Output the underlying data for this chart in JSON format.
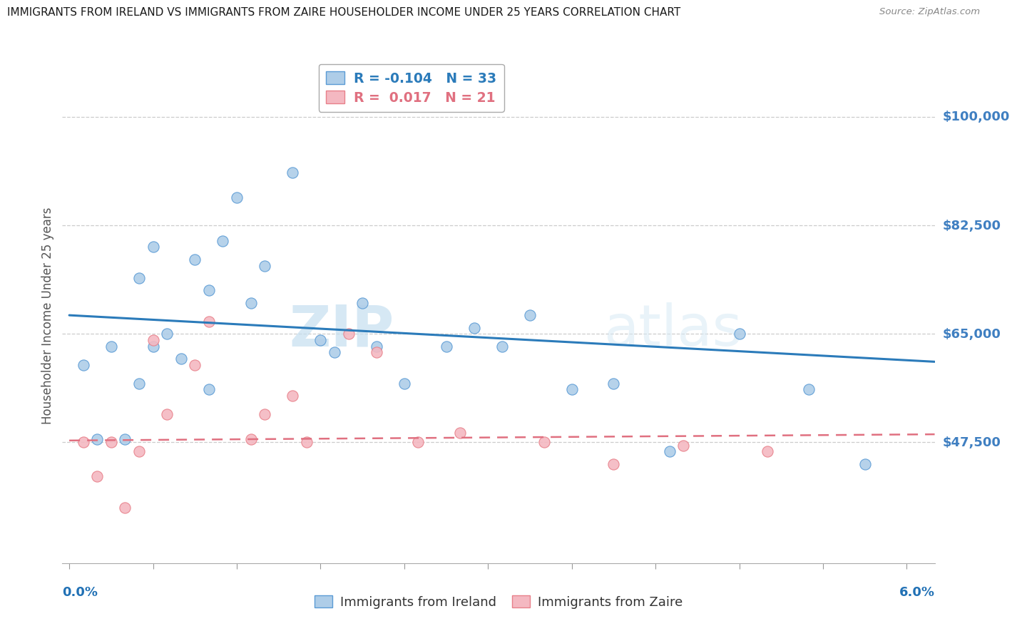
{
  "title": "IMMIGRANTS FROM IRELAND VS IMMIGRANTS FROM ZAIRE HOUSEHOLDER INCOME UNDER 25 YEARS CORRELATION CHART",
  "source": "Source: ZipAtlas.com",
  "ylabel": "Householder Income Under 25 years",
  "ytick_labels": [
    "$47,500",
    "$65,000",
    "$82,500",
    "$100,000"
  ],
  "ytick_values": [
    47500,
    65000,
    82500,
    100000
  ],
  "ymin": 28000,
  "ymax": 108000,
  "xmin": -0.0005,
  "xmax": 0.062,
  "watermark_zip": "ZIP",
  "watermark_atlas": "atlas",
  "legend_ireland": "R = -0.104   N = 33",
  "legend_zaire": "R =  0.017   N = 21",
  "ireland_color": "#aecde8",
  "zaire_color": "#f4b8c1",
  "ireland_edge_color": "#5b9bd5",
  "zaire_edge_color": "#e8808a",
  "ireland_line_color": "#2b7bba",
  "zaire_line_color": "#e07080",
  "ireland_scatter_x": [
    0.001,
    0.002,
    0.003,
    0.004,
    0.005,
    0.005,
    0.006,
    0.006,
    0.007,
    0.008,
    0.009,
    0.01,
    0.01,
    0.011,
    0.012,
    0.013,
    0.014,
    0.016,
    0.018,
    0.019,
    0.021,
    0.022,
    0.024,
    0.027,
    0.029,
    0.031,
    0.033,
    0.036,
    0.039,
    0.043,
    0.048,
    0.053,
    0.057
  ],
  "ireland_scatter_y": [
    60000,
    48000,
    63000,
    48000,
    57000,
    74000,
    79000,
    63000,
    65000,
    61000,
    77000,
    72000,
    56000,
    80000,
    87000,
    70000,
    76000,
    91000,
    64000,
    62000,
    70000,
    63000,
    57000,
    63000,
    66000,
    63000,
    68000,
    56000,
    57000,
    46000,
    65000,
    56000,
    44000
  ],
  "zaire_scatter_x": [
    0.001,
    0.002,
    0.003,
    0.004,
    0.005,
    0.006,
    0.007,
    0.009,
    0.01,
    0.013,
    0.014,
    0.016,
    0.017,
    0.02,
    0.022,
    0.025,
    0.028,
    0.034,
    0.039,
    0.044,
    0.05
  ],
  "zaire_scatter_y": [
    47500,
    42000,
    47500,
    37000,
    46000,
    64000,
    52000,
    60000,
    67000,
    48000,
    52000,
    55000,
    47500,
    65000,
    62000,
    47500,
    49000,
    47500,
    44000,
    47000,
    46000
  ],
  "ireland_trendline_x": [
    0.0,
    0.062
  ],
  "ireland_trendline_y": [
    68000,
    60500
  ],
  "zaire_trendline_x": [
    0.0,
    0.062
  ],
  "zaire_trendline_y": [
    47800,
    48800
  ],
  "background_color": "#ffffff",
  "grid_color": "#cccccc",
  "title_color": "#1a1a1a",
  "axis_label_color": "#3f7fc1",
  "bottom_label_color": "#2171b5",
  "xtick_positions": [
    0.0,
    0.006,
    0.012,
    0.018,
    0.024,
    0.03,
    0.036,
    0.042,
    0.048,
    0.054,
    0.06
  ]
}
